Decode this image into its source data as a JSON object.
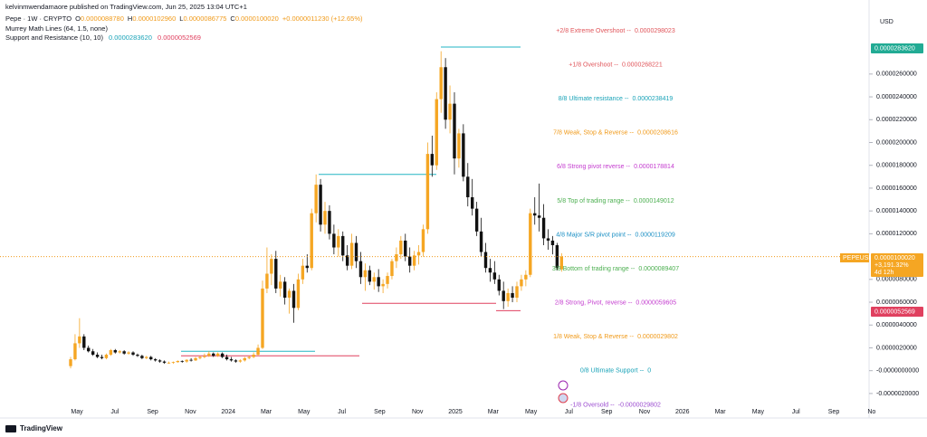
{
  "header": {
    "publisher": "kelvinmwendamaore published on TradingView.com, Jun 25, 2025 13:04 UTC+1",
    "symbol": "Pepe · 1W · CRYPTO",
    "ohlc": [
      {
        "label": "O",
        "value": "0.0000088780"
      },
      {
        "label": "H",
        "value": "0.0000102960"
      },
      {
        "label": "L",
        "value": "0.0000086775"
      },
      {
        "label": "C",
        "value": "0.0000100020"
      }
    ],
    "change": "+0.0000011230 (+12.65%)",
    "indicators": [
      "Murrey Math Lines (64, 1.5, none)",
      "Support and Resistance (10, 10)"
    ],
    "sr_values": [
      "0.0000283620",
      "0.0000052569"
    ],
    "currency": "USD",
    "ticker_tag": "PEPEUSD",
    "change_tag": "+3,191.32%",
    "countdown": "4d 12h",
    "brand": "TradingView"
  },
  "chart_data": {
    "type": "candlestick",
    "up_color": "#f5a623",
    "down_color": "#111111",
    "ylim": [
      -2.8e-06,
      3.13e-05
    ],
    "yticks": [
      {
        "value": 2.6e-05,
        "label": "0.0000260000"
      },
      {
        "value": 2.4e-05,
        "label": "0.0000240000"
      },
      {
        "value": 2.2e-05,
        "label": "0.0000220000"
      },
      {
        "value": 2e-05,
        "label": "0.0000200000"
      },
      {
        "value": 1.8e-05,
        "label": "0.0000180000"
      },
      {
        "value": 1.6e-05,
        "label": "0.0000160000"
      },
      {
        "value": 1.4e-05,
        "label": "0.0000140000"
      },
      {
        "value": 1.2e-05,
        "label": "0.0000120000"
      },
      {
        "value": 8e-06,
        "label": "0.0000080000"
      },
      {
        "value": 6e-06,
        "label": "0.0000060000"
      },
      {
        "value": 4e-06,
        "label": "0.0000040000"
      },
      {
        "value": 2e-06,
        "label": "0.0000020000"
      },
      {
        "value": 0,
        "label": "-0.0000000000"
      },
      {
        "value": -2e-06,
        "label": "-0.0000020000"
      }
    ],
    "x_labels": [
      "May",
      "Jul",
      "Sep",
      "Nov",
      "2024",
      "Mar",
      "May",
      "Jul",
      "Sep",
      "Nov",
      "2025",
      "Mar",
      "May",
      "Jul",
      "Sep",
      "Nov",
      "2026",
      "Mar",
      "May",
      "Jul",
      "Sep",
      "No"
    ],
    "candles": [
      [
        4e-07,
        1.2e-06,
        2e-07,
        1e-06
      ],
      [
        1e-06,
        3.2e-06,
        9e-07,
        2.4e-06
      ],
      [
        2.4e-06,
        4.6e-06,
        2e-06,
        3e-06
      ],
      [
        3e-06,
        3.2e-06,
        1.8e-06,
        2e-06
      ],
      [
        2e-06,
        2.2e-06,
        1.6e-06,
        1.7e-06
      ],
      [
        1.7e-06,
        1.9e-06,
        1.3e-06,
        1.4e-06
      ],
      [
        1.4e-06,
        1.6e-06,
        1.1e-06,
        1.2e-06
      ],
      [
        1.2e-06,
        1.4e-06,
        1e-06,
        1.1e-06
      ],
      [
        1.1e-06,
        1.5e-06,
        1e-06,
        1.4e-06
      ],
      [
        1.4e-06,
        1.9e-06,
        1.3e-06,
        1.8e-06
      ],
      [
        1.8e-06,
        1.9e-06,
        1.5e-06,
        1.6e-06
      ],
      [
        1.6e-06,
        1.8e-06,
        1.5e-06,
        1.7e-06
      ],
      [
        1.7e-06,
        1.8e-06,
        1.4e-06,
        1.5e-06
      ],
      [
        1.5e-06,
        1.7e-06,
        1.4e-06,
        1.6e-06
      ],
      [
        1.6e-06,
        1.7e-06,
        1.3e-06,
        1.4e-06
      ],
      [
        1.4e-06,
        1.5e-06,
        1.2e-06,
        1.3e-06
      ],
      [
        1.3e-06,
        1.4e-06,
        1e-06,
        1.1e-06
      ],
      [
        1.1e-06,
        1.3e-06,
        1e-06,
        1.2e-06
      ],
      [
        1.2e-06,
        1.3e-06,
        9e-07,
        1e-06
      ],
      [
        1e-06,
        1.1e-06,
        8e-07,
        9e-07
      ],
      [
        9e-07,
        1e-06,
        7e-07,
        8e-07
      ],
      [
        8e-07,
        9e-07,
        6e-07,
        7e-07
      ],
      [
        7e-07,
        8e-07,
        6e-07,
        7e-07
      ],
      [
        7e-07,
        8e-07,
        6e-07,
        7.5e-07
      ],
      [
        7.5e-07,
        9e-07,
        7e-07,
        8.5e-07
      ],
      [
        8.5e-07,
        9e-07,
        7e-07,
        8e-07
      ],
      [
        8e-07,
        1e-06,
        7e-07,
        9.5e-07
      ],
      [
        9.5e-07,
        1.1e-06,
        8e-07,
        9e-07
      ],
      [
        9e-07,
        1.2e-06,
        8.5e-07,
        1.1e-06
      ],
      [
        1.1e-06,
        1.3e-06,
        1e-06,
        1.2e-06
      ],
      [
        1.2e-06,
        1.5e-06,
        1.1e-06,
        1.3e-06
      ],
      [
        1.3e-06,
        1.7e-06,
        1.2e-06,
        1.5e-06
      ],
      [
        1.5e-06,
        1.6e-06,
        1.2e-06,
        1.3e-06
      ],
      [
        1.3e-06,
        1.6e-06,
        1.2e-06,
        1.5e-06
      ],
      [
        1.5e-06,
        1.6e-06,
        1.1e-06,
        1.2e-06
      ],
      [
        1.2e-06,
        1.4e-06,
        9e-07,
        1e-06
      ],
      [
        1e-06,
        1.2e-06,
        8e-07,
        9e-07
      ],
      [
        9e-07,
        1e-06,
        7e-07,
        8e-07
      ],
      [
        8e-07,
        1e-06,
        7e-07,
        9e-07
      ],
      [
        9e-07,
        1.2e-06,
        8e-07,
        1.1e-06
      ],
      [
        1.1e-06,
        1.3e-06,
        1e-06,
        1.2e-06
      ],
      [
        1.2e-06,
        1.6e-06,
        1.1e-06,
        1.4e-06
      ],
      [
        1.4e-06,
        2.3e-06,
        1.3e-06,
        2e-06
      ],
      [
        2e-06,
        7.9e-06,
        1.9e-06,
        7.2e-06
      ],
      [
        7.2e-06,
        1.08e-05,
        6.8e-06,
        8.5e-06
      ],
      [
        8.5e-06,
        1.02e-05,
        7.5e-06,
        9.8e-06
      ],
      [
        9.8e-06,
        1.05e-05,
        6.8e-06,
        7.2e-06
      ],
      [
        7.2e-06,
        8.4e-06,
        6.5e-06,
        7.8e-06
      ],
      [
        7.8e-06,
        8.2e-06,
        5.8e-06,
        6.4e-06
      ],
      [
        6.4e-06,
        7.2e-06,
        5e-06,
        7e-06
      ],
      [
        7e-06,
        7.6e-06,
        4.2e-06,
        5.5e-06
      ],
      [
        5.5e-06,
        8.5e-06,
        5.3e-06,
        8e-06
      ],
      [
        8e-06,
        9.8e-06,
        7.6e-06,
        9.2e-06
      ],
      [
        9.2e-06,
        1.02e-05,
        8.6e-06,
        9e-06
      ],
      [
        9e-06,
        1.42e-05,
        8.8e-06,
        1.38e-05
      ],
      [
        1.38e-05,
        1.72e-05,
        1.3e-05,
        1.63e-05
      ],
      [
        1.63e-05,
        1.68e-05,
        1.22e-05,
        1.28e-05
      ],
      [
        1.28e-05,
        1.48e-05,
        1.2e-05,
        1.4e-05
      ],
      [
        1.4e-05,
        1.45e-05,
        1.15e-05,
        1.2e-05
      ],
      [
        1.2e-05,
        1.28e-05,
        1.02e-05,
        1.08e-05
      ],
      [
        1.08e-05,
        1.24e-05,
        1e-05,
        1.18e-05
      ],
      [
        1.18e-05,
        1.22e-05,
        9.6e-06,
        1.01e-05
      ],
      [
        1.01e-05,
        1.1e-05,
        8.8e-06,
        9.2e-06
      ],
      [
        9.2e-06,
        1.2e-05,
        8.9e-06,
        1.12e-05
      ],
      [
        1.12e-05,
        1.18e-05,
        9e-06,
        9.6e-06
      ],
      [
        9.6e-06,
        1.04e-05,
        7.6e-06,
        8.2e-06
      ],
      [
        8.2e-06,
        9.4e-06,
        7e-06,
        8.8e-06
      ],
      [
        8.8e-06,
        9.2e-06,
        7.5e-06,
        7.8e-06
      ],
      [
        7.8e-06,
        8.6e-06,
        7.1e-06,
        8.2e-06
      ],
      [
        8.2e-06,
        8.9e-06,
        6.9e-06,
        7.4e-06
      ],
      [
        7.4e-06,
        8e-06,
        6.8e-06,
        7.6e-06
      ],
      [
        7.6e-06,
        8.6e-06,
        7.2e-06,
        8.3e-06
      ],
      [
        8.3e-06,
        9.8e-06,
        8e-06,
        9.6e-06
      ],
      [
        9.6e-06,
        1.08e-05,
        9e-06,
        1.02e-05
      ],
      [
        1.02e-05,
        1.18e-05,
        9.8e-06,
        1.14e-05
      ],
      [
        1.14e-05,
        1.2e-05,
        9.6e-06,
        1e-05
      ],
      [
        1e-05,
        1.08e-05,
        8.6e-06,
        9.2e-06
      ],
      [
        9.2e-06,
        1.05e-05,
        8.8e-06,
        1.01e-05
      ],
      [
        1.01e-05,
        1.1e-05,
        9.3e-06,
        1.04e-05
      ],
      [
        1.04e-05,
        1.28e-05,
        1e-05,
        1.24e-05
      ],
      [
        1.24e-05,
        2e-05,
        1.2e-05,
        1.9e-05
      ],
      [
        1.9e-05,
        2.06e-05,
        1.7e-05,
        1.8e-05
      ],
      [
        1.8e-05,
        2.44e-05,
        1.76e-05,
        2.38e-05
      ],
      [
        2.38e-05,
        2.8e-05,
        2.26e-05,
        2.66e-05
      ],
      [
        2.66e-05,
        2.74e-05,
        2.12e-05,
        2.2e-05
      ],
      [
        2.2e-05,
        2.5e-05,
        2.08e-05,
        2.34e-05
      ],
      [
        2.34e-05,
        2.44e-05,
        1.72e-05,
        1.86e-05
      ],
      [
        1.86e-05,
        2.12e-05,
        1.78e-05,
        2.08e-05
      ],
      [
        2.08e-05,
        2.16e-05,
        1.66e-05,
        1.7e-05
      ],
      [
        1.7e-05,
        1.82e-05,
        1.44e-05,
        1.52e-05
      ],
      [
        1.52e-05,
        1.68e-05,
        1.36e-05,
        1.42e-05
      ],
      [
        1.42e-05,
        1.48e-05,
        1.18e-05,
        1.22e-05
      ],
      [
        1.22e-05,
        1.34e-05,
        1e-05,
        1.04e-05
      ],
      [
        1.04e-05,
        1.12e-05,
        8.6e-06,
        9e-06
      ],
      [
        9e-06,
        9.8e-06,
        7.8e-06,
        8.6e-06
      ],
      [
        8.6e-06,
        9.6e-06,
        7.6e-06,
        8e-06
      ],
      [
        8e-06,
        8.4e-06,
        6.6e-06,
        7e-06
      ],
      [
        7e-06,
        7.8e-06,
        5.4e-06,
        6.1e-06
      ],
      [
        6.1e-06,
        7.2e-06,
        5.6e-06,
        6.8e-06
      ],
      [
        6.8e-06,
        7.4e-06,
        6e-06,
        6.4e-06
      ],
      [
        6.4e-06,
        7.8e-06,
        6e-06,
        7.4e-06
      ],
      [
        7.4e-06,
        8.4e-06,
        7e-06,
        8e-06
      ],
      [
        8e-06,
        8.8e-06,
        7.4e-06,
        8.4e-06
      ],
      [
        8.4e-06,
        1.42e-05,
        8.2e-06,
        1.38e-05
      ],
      [
        1.38e-05,
        1.52e-05,
        1.28e-05,
        1.36e-05
      ],
      [
        1.36e-05,
        1.64e-05,
        1.22e-05,
        1.34e-05
      ],
      [
        1.34e-05,
        1.46e-05,
        1.1e-05,
        1.16e-05
      ],
      [
        1.16e-05,
        1.24e-05,
        1.06e-05,
        1.14e-05
      ],
      [
        1.14e-05,
        1.18e-05,
        1.02e-05,
        1.1e-05
      ],
      [
        1.1e-05,
        1.12e-05,
        8.8e-06,
        9e-06
      ],
      [
        8.878e-06,
        1.0296e-05,
        8.6775e-06,
        1.0002e-05
      ]
    ],
    "sr_lines": [
      {
        "value": 2.8362e-05,
        "color": "#22b5c4"
      },
      {
        "value": 1.72e-05,
        "color": "#22b5c4"
      },
      {
        "value": 1.7e-06,
        "color": "#22b5c4"
      },
      {
        "value": 5.9e-06,
        "color": "#e0405f"
      },
      {
        "value": 5.2569e-06,
        "color": "#e0405f"
      },
      {
        "value": 1.3e-06,
        "color": "#e0405f"
      }
    ],
    "murrey_lines": [
      {
        "label": "+2/8 Extreme Overshoot --",
        "value": 2.98023e-05,
        "color": "#e0555a"
      },
      {
        "label": "+1/8 Overshoot --",
        "value": 2.68221e-05,
        "color": "#e0555a"
      },
      {
        "label": "8/8 Ultimate resistance --",
        "value": 2.38419e-05,
        "color": "#1aa3b8"
      },
      {
        "label": "7/8 Weak, Stop & Reverse --",
        "value": 2.08616e-05,
        "color": "#f09a1a"
      },
      {
        "label": "6/8 Strong pivot reverse --",
        "value": 1.78814e-05,
        "color": "#c43ccf"
      },
      {
        "label": "5/8 Top of trading range --",
        "value": 1.49012e-05,
        "color": "#4caf50"
      },
      {
        "label": "4/8 Major S/R pivot point --",
        "value": 1.19209e-05,
        "color": "#1a8fc4"
      },
      {
        "label": "3/8 Bottom of trading range --",
        "value": 8.9407e-06,
        "color": "#4caf50"
      },
      {
        "label": "2/8 Strong, Pivot, reverse --",
        "value": 5.9605e-06,
        "color": "#c43ccf"
      },
      {
        "label": "1/8 Weak, Stop & Reverse --",
        "value": 2.9802e-06,
        "color": "#f09a1a"
      },
      {
        "label": "0/8 Ultimate Support --",
        "value": 0,
        "color": "#1aa3b8"
      },
      {
        "label": "-1/8 Oversold --",
        "value": -2.9802e-06,
        "color": "#9c4dd0"
      }
    ]
  }
}
